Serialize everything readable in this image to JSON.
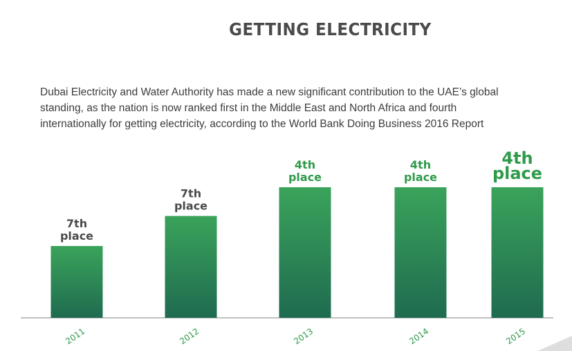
{
  "header": {
    "title": "GETTING ELECTRICITY",
    "description": "Dubai Electricity and Water Authority has made a new significant contribution to the UAE’s global standing, as the nation is now ranked first in the Middle East and North Africa and fourth internationally for getting electricity, according to the World Bank Doing Business 2016 Report"
  },
  "colors": {
    "bar_top": "#3aa35a",
    "bar_bottom": "#1f6b50",
    "label_grey": "#4a4a4a",
    "label_green": "#2e9a4a",
    "axis": "#9a9a9a"
  },
  "chart_data": {
    "type": "bar",
    "title": "GETTING ELECTRICITY",
    "categories": [
      "2011",
      "2012",
      "2013",
      "2014",
      "2015"
    ],
    "values": [
      7,
      7,
      4,
      4,
      4
    ],
    "unit": "rank (place)",
    "data_labels": [
      {
        "line1": "7th",
        "line2": "place",
        "emphasis": "normal",
        "color": "grey"
      },
      {
        "line1": "7th",
        "line2": "place",
        "emphasis": "normal",
        "color": "grey"
      },
      {
        "line1": "4th",
        "line2": "place",
        "emphasis": "normal",
        "color": "green"
      },
      {
        "line1": "4th",
        "line2": "place",
        "emphasis": "normal",
        "color": "green"
      },
      {
        "line1": "4th",
        "line2": "place",
        "emphasis": "large",
        "color": "green"
      }
    ],
    "bar_heights_relative": [
      0.55,
      0.78,
      1.0,
      1.0,
      1.0
    ],
    "xlabel": "",
    "ylabel": "",
    "grid": false,
    "legend": "none"
  }
}
